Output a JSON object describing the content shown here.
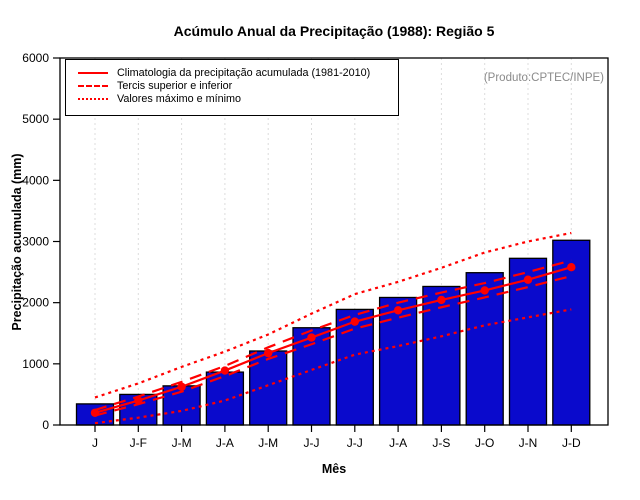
{
  "chart_data": {
    "type": "bar",
    "title": "Acúmulo Anual da Precipitação (1988): Região 5",
    "xlabel": "Mês",
    "ylabel": "Precipitação acumulada (mm)",
    "annotation": "(Produto:CPTEC/INPE)",
    "categories": [
      "J",
      "J-F",
      "J-M",
      "J-A",
      "J-M",
      "J-J",
      "J-J",
      "J-A",
      "J-S",
      "J-O",
      "J-N",
      "J-D"
    ],
    "bar_values": [
      345,
      500,
      640,
      865,
      1210,
      1590,
      1890,
      2085,
      2265,
      2490,
      2725,
      3020
    ],
    "series": [
      {
        "id": "climatologia",
        "style": "solid",
        "marker": "circle",
        "values": [
          200,
          400,
          625,
          890,
          1175,
          1430,
          1690,
          1875,
          2045,
          2200,
          2375,
          2580
        ]
      },
      {
        "id": "tercil-superior",
        "style": "dashed",
        "values": [
          245,
          465,
          705,
          965,
          1270,
          1545,
          1800,
          2000,
          2165,
          2320,
          2500,
          2690
        ]
      },
      {
        "id": "tercil-inferior",
        "style": "dashed",
        "values": [
          155,
          340,
          545,
          800,
          1080,
          1320,
          1575,
          1755,
          1925,
          2085,
          2255,
          2435
        ]
      },
      {
        "id": "maximo",
        "style": "dotted",
        "values": [
          450,
          680,
          950,
          1200,
          1480,
          1820,
          2140,
          2340,
          2570,
          2820,
          3000,
          3140
        ]
      },
      {
        "id": "minimo",
        "style": "dotted",
        "values": [
          30,
          120,
          230,
          400,
          650,
          900,
          1150,
          1290,
          1450,
          1630,
          1760,
          1890
        ]
      }
    ],
    "ylim": [
      0,
      6000
    ],
    "yticks": [
      0,
      1000,
      2000,
      3000,
      4000,
      5000,
      6000
    ],
    "grid": "vertical-dotted",
    "legend": {
      "position": "top-left",
      "entries": [
        {
          "style": "solid",
          "label": "Climatologia da precipitação acumulada (1981-2010)"
        },
        {
          "style": "dashed",
          "label": "Tercis superior e inferior"
        },
        {
          "style": "dotted",
          "label": "Valores máximo e mínimo"
        }
      ]
    },
    "colors": {
      "bar": "#0a0acc",
      "line": "#ff0000",
      "grid": "#dcdcdc",
      "annotation": "#8a8a8a",
      "axis": "#000000"
    }
  }
}
